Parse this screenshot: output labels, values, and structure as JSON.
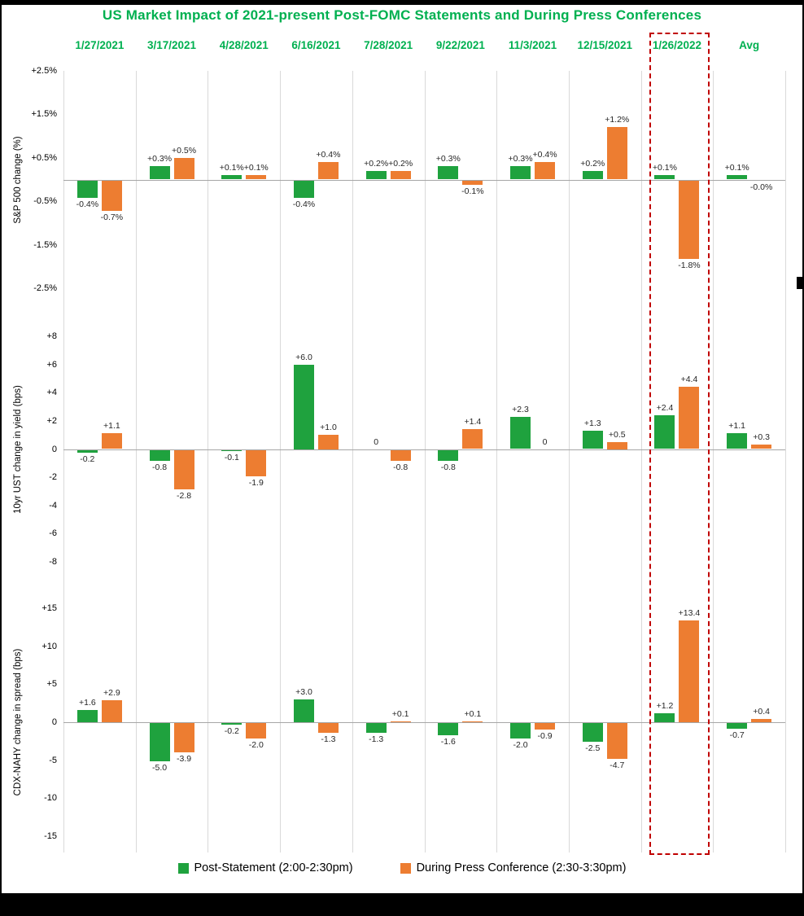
{
  "title": "US Market Impact of 2021-present Post-FOMC Statements and During Press Conferences",
  "colors": {
    "title_green": "#00B050",
    "series_green": "#1FA23E",
    "series_orange": "#ED7D31",
    "highlight_red": "#C00000",
    "separator_gray": "#D9D9D9",
    "zero_line_gray": "#A6A6A6"
  },
  "legend": [
    {
      "label": "Post-Statement (2:00-2:30pm)",
      "color_key": "series_green"
    },
    {
      "label": "During Press Conference (2:30-3:30pm)",
      "color_key": "series_orange"
    }
  ],
  "highlight_column": "1/26/2022",
  "categories": [
    "1/27/2021",
    "3/17/2021",
    "4/28/2021",
    "6/16/2021",
    "7/28/2021",
    "9/22/2021",
    "11/3/2021",
    "12/15/2021",
    "1/26/2022",
    "Avg"
  ],
  "chart_data": [
    {
      "type": "bar",
      "ylabel": "S&P 500 change (%)",
      "ylim": [
        -2.5,
        2.5
      ],
      "yticks": [
        {
          "v": 2.5,
          "label": "+2.5%"
        },
        {
          "v": 1.5,
          "label": "+1.5%"
        },
        {
          "v": 0.5,
          "label": "+0.5%"
        },
        {
          "v": -0.5,
          "label": "-0.5%"
        },
        {
          "v": -1.5,
          "label": "-1.5%"
        },
        {
          "v": -2.5,
          "label": "-2.5%"
        }
      ],
      "series": [
        {
          "name": "Post-Statement (2:00-2:30pm)",
          "values": [
            -0.4,
            0.3,
            0.1,
            -0.4,
            0.2,
            0.3,
            0.3,
            0.2,
            0.1,
            0.1
          ],
          "labels": [
            "-0.4%",
            "+0.3%",
            "+0.1%",
            "-0.4%",
            "+0.2%",
            "+0.3%",
            "+0.3%",
            "+0.2%",
            "+0.1%",
            "+0.1%"
          ]
        },
        {
          "name": "During Press Conference (2:30-3:30pm)",
          "values": [
            -0.7,
            0.5,
            0.1,
            0.4,
            0.2,
            -0.1,
            0.4,
            1.2,
            -1.8,
            -0.0
          ],
          "labels": [
            "-0.7%",
            "+0.5%",
            "+0.1%",
            "+0.4%",
            "+0.2%",
            "-0.1%",
            "+0.4%",
            "+1.2%",
            "-1.8%",
            "-0.0%"
          ]
        }
      ]
    },
    {
      "type": "bar",
      "ylabel": "10yr UST change in yield (bps)",
      "ylim": [
        -8,
        8
      ],
      "yticks": [
        {
          "v": 8,
          "label": "+8"
        },
        {
          "v": 6,
          "label": "+6"
        },
        {
          "v": 4,
          "label": "+4"
        },
        {
          "v": 2,
          "label": "+2"
        },
        {
          "v": 0,
          "label": "0"
        },
        {
          "v": -2,
          "label": "-2"
        },
        {
          "v": -4,
          "label": "-4"
        },
        {
          "v": -6,
          "label": "-6"
        },
        {
          "v": -8,
          "label": "-8"
        }
      ],
      "series": [
        {
          "name": "Post-Statement (2:00-2:30pm)",
          "values": [
            -0.2,
            -0.8,
            -0.1,
            6.0,
            0,
            -0.8,
            2.3,
            1.3,
            2.4,
            1.1
          ],
          "labels": [
            "-0.2",
            "-0.8",
            "-0.1",
            "+6.0",
            "0",
            "-0.8",
            "+2.3",
            "+1.3",
            "+2.4",
            "+1.1"
          ]
        },
        {
          "name": "During Press Conference (2:30-3:30pm)",
          "values": [
            1.1,
            -2.8,
            -1.9,
            1.0,
            -0.8,
            1.4,
            0,
            0.5,
            4.4,
            0.3
          ],
          "labels": [
            "+1.1",
            "-2.8",
            "-1.9",
            "+1.0",
            "-0.8",
            "+1.4",
            "0",
            "+0.5",
            "+4.4",
            "+0.3"
          ]
        }
      ]
    },
    {
      "type": "bar",
      "ylabel": "CDX-NAHY change in spread (bps)",
      "ylim": [
        -15,
        15
      ],
      "yticks": [
        {
          "v": 15,
          "label": "+15"
        },
        {
          "v": 10,
          "label": "+10"
        },
        {
          "v": 5,
          "label": "+5"
        },
        {
          "v": 0,
          "label": "0"
        },
        {
          "v": -5,
          "label": "-5"
        },
        {
          "v": -10,
          "label": "-10"
        },
        {
          "v": -15,
          "label": "-15"
        }
      ],
      "series": [
        {
          "name": "Post-Statement (2:00-2:30pm)",
          "values": [
            1.6,
            -5.0,
            -0.2,
            3.0,
            -1.3,
            -1.6,
            -2.0,
            -2.5,
            1.2,
            -0.7
          ],
          "labels": [
            "+1.6",
            "-5.0",
            "-0.2",
            "+3.0",
            "-1.3",
            "-1.6",
            "-2.0",
            "-2.5",
            "+1.2",
            "-0.7"
          ]
        },
        {
          "name": "During Press Conference (2:30-3:30pm)",
          "values": [
            2.9,
            -3.9,
            -2.0,
            -1.3,
            0.1,
            0.1,
            -0.9,
            -4.7,
            13.4,
            0.4
          ],
          "labels": [
            "+2.9",
            "-3.9",
            "-2.0",
            "-1.3",
            "+0.1",
            "+0.1",
            "-0.9",
            "-4.7",
            "+13.4",
            "+0.4"
          ]
        }
      ]
    }
  ]
}
